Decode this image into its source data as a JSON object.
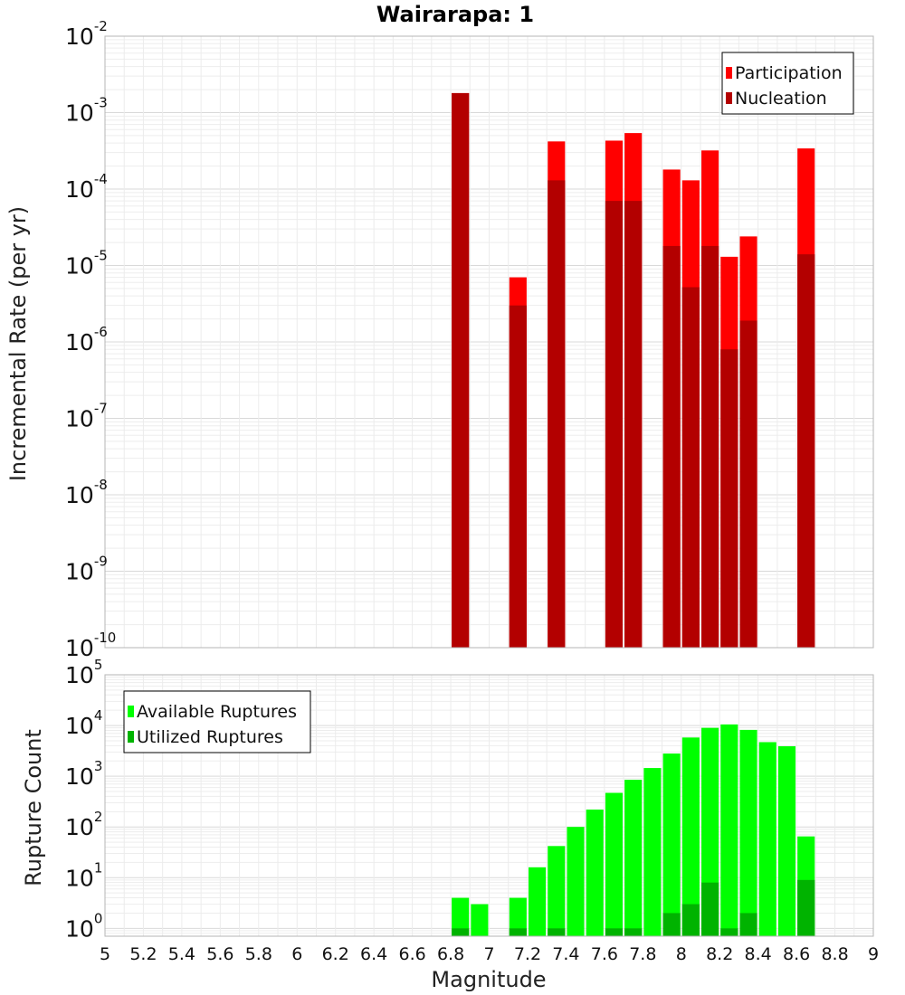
{
  "chart_data": [
    {
      "type": "bar",
      "title": "Wairarapa: 1",
      "ylabel": "Incremental Rate (per yr)",
      "xlabel": "",
      "yscale": "log",
      "ylim": [
        1e-10,
        0.01
      ],
      "xlim": [
        5,
        9
      ],
      "bar_width": 0.09,
      "grid": true,
      "legend_position": "top-right",
      "series": [
        {
          "name": "Participation",
          "color": "#ff0000",
          "x": [
            6.85,
            7.15,
            7.35,
            7.65,
            7.75,
            7.95,
            8.05,
            8.15,
            8.25,
            8.35,
            8.65
          ],
          "values": [
            0.0018,
            7e-06,
            0.00042,
            0.00043,
            0.00054,
            0.00018,
            0.00013,
            0.00032,
            1.3e-05,
            2.4e-05,
            0.00034
          ]
        },
        {
          "name": "Nucleation",
          "color": "#b30000",
          "x": [
            6.85,
            7.15,
            7.35,
            7.65,
            7.75,
            7.95,
            8.05,
            8.15,
            8.25,
            8.35,
            8.65
          ],
          "values": [
            0.0018,
            3e-06,
            0.00013,
            7e-05,
            7e-05,
            1.8e-05,
            5.2e-06,
            1.8e-05,
            8e-07,
            1.9e-06,
            1.4e-05
          ]
        }
      ]
    },
    {
      "type": "bar",
      "ylabel": "Rupture Count",
      "xlabel": "Magnitude",
      "yscale": "log",
      "ylim": [
        0.7,
        100000.0
      ],
      "xlim": [
        5,
        9
      ],
      "bar_width": 0.09,
      "grid": true,
      "legend_position": "top-left",
      "x_ticks": [
        "5",
        "5.2",
        "5.4",
        "5.6",
        "5.8",
        "6",
        "6.2",
        "6.4",
        "6.6",
        "6.8",
        "7",
        "7.2",
        "7.4",
        "7.6",
        "7.8",
        "8",
        "8.2",
        "8.4",
        "8.6",
        "8.8",
        "9"
      ],
      "series": [
        {
          "name": "Available Ruptures",
          "color": "#00ff00",
          "x": [
            6.85,
            6.95,
            7.15,
            7.25,
            7.35,
            7.45,
            7.55,
            7.65,
            7.75,
            7.85,
            7.95,
            8.05,
            8.15,
            8.25,
            8.35,
            8.45,
            8.55,
            8.65
          ],
          "values": [
            4,
            3,
            4,
            16,
            42,
            100,
            220,
            470,
            850,
            1450,
            2800,
            5800,
            9000,
            10500,
            8200,
            4700,
            3900,
            65
          ]
        },
        {
          "name": "Utilized Ruptures",
          "color": "#00b300",
          "x": [
            6.85,
            7.15,
            7.35,
            7.65,
            7.75,
            7.95,
            8.05,
            8.15,
            8.25,
            8.35,
            8.65
          ],
          "values": [
            1,
            1,
            1,
            1,
            1,
            2,
            3,
            8,
            1,
            2,
            9
          ]
        }
      ]
    }
  ]
}
